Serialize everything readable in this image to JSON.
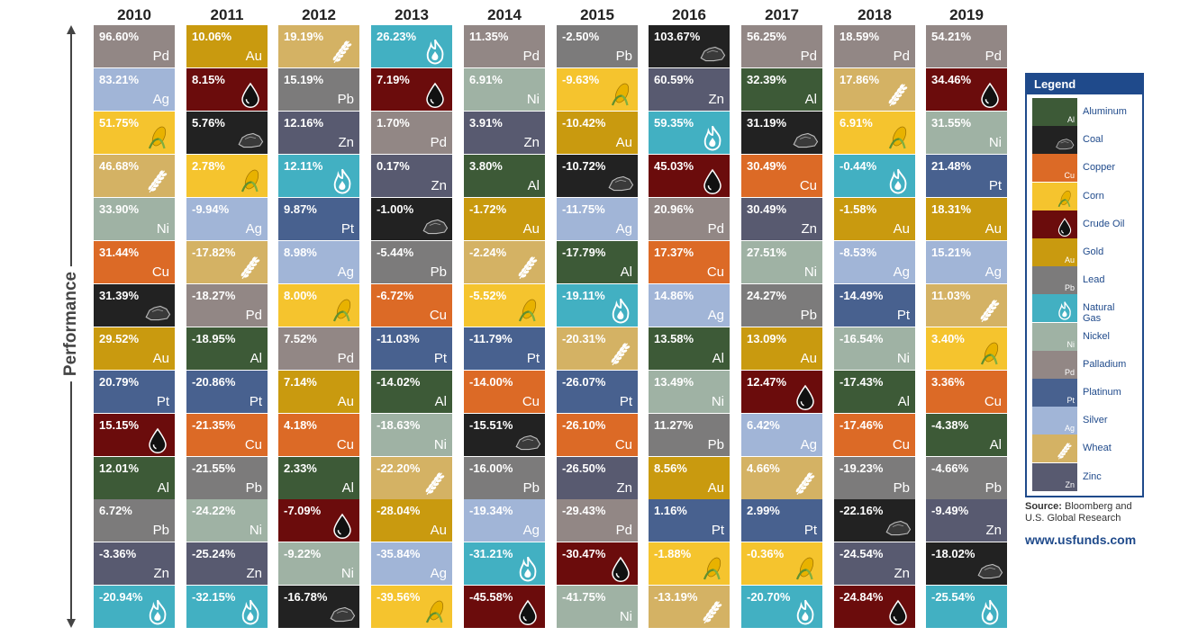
{
  "chart_data": {
    "type": "table",
    "y_axis_label": "Performance",
    "years": [
      "2010",
      "2011",
      "2012",
      "2013",
      "2014",
      "2015",
      "2016",
      "2017",
      "2018",
      "2019"
    ],
    "columns": [
      [
        [
          "96.60%",
          "Pd"
        ],
        [
          "83.21%",
          "Ag"
        ],
        [
          "51.75%",
          "corn"
        ],
        [
          "46.68%",
          "wheat"
        ],
        [
          "33.90%",
          "Ni"
        ],
        [
          "31.44%",
          "Cu"
        ],
        [
          "31.39%",
          "coal"
        ],
        [
          "29.52%",
          "Au"
        ],
        [
          "20.79%",
          "Pt"
        ],
        [
          "15.15%",
          "oil"
        ],
        [
          "12.01%",
          "Al"
        ],
        [
          "6.72%",
          "Pb"
        ],
        [
          "-3.36%",
          "Zn"
        ],
        [
          "-20.94%",
          "gas"
        ]
      ],
      [
        [
          "10.06%",
          "Au"
        ],
        [
          "8.15%",
          "oil"
        ],
        [
          "5.76%",
          "coal"
        ],
        [
          "2.78%",
          "corn"
        ],
        [
          "-9.94%",
          "Ag"
        ],
        [
          "-17.82%",
          "wheat"
        ],
        [
          "-18.27%",
          "Pd"
        ],
        [
          "-18.95%",
          "Al"
        ],
        [
          "-20.86%",
          "Pt"
        ],
        [
          "-21.35%",
          "Cu"
        ],
        [
          "-21.55%",
          "Pb"
        ],
        [
          "-24.22%",
          "Ni"
        ],
        [
          "-25.24%",
          "Zn"
        ],
        [
          "-32.15%",
          "gas"
        ]
      ],
      [
        [
          "19.19%",
          "wheat"
        ],
        [
          "15.19%",
          "Pb"
        ],
        [
          "12.16%",
          "Zn"
        ],
        [
          "12.11%",
          "gas"
        ],
        [
          "9.87%",
          "Pt"
        ],
        [
          "8.98%",
          "Ag"
        ],
        [
          "8.00%",
          "corn"
        ],
        [
          "7.52%",
          "Pd"
        ],
        [
          "7.14%",
          "Au"
        ],
        [
          "4.18%",
          "Cu"
        ],
        [
          "2.33%",
          "Al"
        ],
        [
          "-7.09%",
          "oil"
        ],
        [
          "-9.22%",
          "Ni"
        ],
        [
          "-16.78%",
          "coal"
        ]
      ],
      [
        [
          "26.23%",
          "gas"
        ],
        [
          "7.19%",
          "oil"
        ],
        [
          "1.70%",
          "Pd"
        ],
        [
          "0.17%",
          "Zn"
        ],
        [
          "-1.00%",
          "coal"
        ],
        [
          "-5.44%",
          "Pb"
        ],
        [
          "-6.72%",
          "Cu"
        ],
        [
          "-11.03%",
          "Pt"
        ],
        [
          "-14.02%",
          "Al"
        ],
        [
          "-18.63%",
          "Ni"
        ],
        [
          "-22.20%",
          "wheat"
        ],
        [
          "-28.04%",
          "Au"
        ],
        [
          "-35.84%",
          "Ag"
        ],
        [
          "-39.56%",
          "corn"
        ]
      ],
      [
        [
          "11.35%",
          "Pd"
        ],
        [
          "6.91%",
          "Ni"
        ],
        [
          "3.91%",
          "Zn"
        ],
        [
          "3.80%",
          "Al"
        ],
        [
          "-1.72%",
          "Au"
        ],
        [
          "-2.24%",
          "wheat"
        ],
        [
          "-5.52%",
          "corn"
        ],
        [
          "-11.79%",
          "Pt"
        ],
        [
          "-14.00%",
          "Cu"
        ],
        [
          "-15.51%",
          "coal"
        ],
        [
          "-16.00%",
          "Pb"
        ],
        [
          "-19.34%",
          "Ag"
        ],
        [
          "-31.21%",
          "gas"
        ],
        [
          "-45.58%",
          "oil"
        ]
      ],
      [
        [
          "-2.50%",
          "Pb"
        ],
        [
          "-9.63%",
          "corn"
        ],
        [
          "-10.42%",
          "Au"
        ],
        [
          "-10.72%",
          "coal"
        ],
        [
          "-11.75%",
          "Ag"
        ],
        [
          "-17.79%",
          "Al"
        ],
        [
          "-19.11%",
          "gas"
        ],
        [
          "-20.31%",
          "wheat"
        ],
        [
          "-26.07%",
          "Pt"
        ],
        [
          "-26.10%",
          "Cu"
        ],
        [
          "-26.50%",
          "Zn"
        ],
        [
          "-29.43%",
          "Pd"
        ],
        [
          "-30.47%",
          "oil"
        ],
        [
          "-41.75%",
          "Ni"
        ]
      ],
      [
        [
          "103.67%",
          "coal"
        ],
        [
          "60.59%",
          "Zn"
        ],
        [
          "59.35%",
          "gas"
        ],
        [
          "45.03%",
          "oil"
        ],
        [
          "20.96%",
          "Pd"
        ],
        [
          "17.37%",
          "Cu"
        ],
        [
          "14.86%",
          "Ag"
        ],
        [
          "13.58%",
          "Al"
        ],
        [
          "13.49%",
          "Ni"
        ],
        [
          "11.27%",
          "Pb"
        ],
        [
          "8.56%",
          "Au"
        ],
        [
          "1.16%",
          "Pt"
        ],
        [
          "-1.88%",
          "corn"
        ],
        [
          "-13.19%",
          "wheat"
        ]
      ],
      [
        [
          "56.25%",
          "Pd"
        ],
        [
          "32.39%",
          "Al"
        ],
        [
          "31.19%",
          "coal"
        ],
        [
          "30.49%",
          "Cu"
        ],
        [
          "30.49%",
          "Zn"
        ],
        [
          "27.51%",
          "Ni"
        ],
        [
          "24.27%",
          "Pb"
        ],
        [
          "13.09%",
          "Au"
        ],
        [
          "12.47%",
          "oil"
        ],
        [
          "6.42%",
          "Ag"
        ],
        [
          "4.66%",
          "wheat"
        ],
        [
          "2.99%",
          "Pt"
        ],
        [
          "-0.36%",
          "corn"
        ],
        [
          "-20.70%",
          "gas"
        ]
      ],
      [
        [
          "18.59%",
          "Pd"
        ],
        [
          "17.86%",
          "wheat"
        ],
        [
          "6.91%",
          "corn"
        ],
        [
          "-0.44%",
          "gas"
        ],
        [
          "-1.58%",
          "Au"
        ],
        [
          "-8.53%",
          "Ag"
        ],
        [
          "-14.49%",
          "Pt"
        ],
        [
          "-16.54%",
          "Ni"
        ],
        [
          "-17.43%",
          "Al"
        ],
        [
          "-17.46%",
          "Cu"
        ],
        [
          "-19.23%",
          "Pb"
        ],
        [
          "-22.16%",
          "coal"
        ],
        [
          "-24.54%",
          "Zn"
        ],
        [
          "-24.84%",
          "oil"
        ]
      ],
      [
        [
          "54.21%",
          "Pd"
        ],
        [
          "34.46%",
          "oil"
        ],
        [
          "31.55%",
          "Ni"
        ],
        [
          "21.48%",
          "Pt"
        ],
        [
          "18.31%",
          "Au"
        ],
        [
          "15.21%",
          "Ag"
        ],
        [
          "11.03%",
          "wheat"
        ],
        [
          "3.40%",
          "corn"
        ],
        [
          "3.36%",
          "Cu"
        ],
        [
          "-4.38%",
          "Al"
        ],
        [
          "-4.66%",
          "Pb"
        ],
        [
          "-9.49%",
          "Zn"
        ],
        [
          "-18.02%",
          "coal"
        ],
        [
          "-25.54%",
          "gas"
        ]
      ]
    ],
    "commodities": {
      "Al": {
        "name": "Aluminum",
        "symbol": "Al",
        "color": "#3d5a37",
        "icon": "text"
      },
      "coal": {
        "name": "Coal",
        "symbol": "",
        "color": "#222222",
        "icon": "coal-icon"
      },
      "Cu": {
        "name": "Copper",
        "symbol": "Cu",
        "color": "#dc6a26",
        "icon": "text"
      },
      "corn": {
        "name": "Corn",
        "symbol": "",
        "color": "#f5c42e",
        "icon": "corn-icon"
      },
      "oil": {
        "name": "Crude Oil",
        "symbol": "",
        "color": "#6b0c0c",
        "icon": "oil-drop-icon"
      },
      "Au": {
        "name": "Gold",
        "symbol": "Au",
        "color": "#c99a0f",
        "icon": "text"
      },
      "Pb": {
        "name": "Lead",
        "symbol": "Pb",
        "color": "#7c7b7b",
        "icon": "text"
      },
      "gas": {
        "name": "Natural Gas",
        "symbol": "",
        "color": "#42b0c2",
        "icon": "flame-icon"
      },
      "Ni": {
        "name": "Nickel",
        "symbol": "Ni",
        "color": "#9fb2a4",
        "icon": "text"
      },
      "Pd": {
        "name": "Palladium",
        "symbol": "Pd",
        "color": "#928785",
        "icon": "text"
      },
      "Pt": {
        "name": "Platinum",
        "symbol": "Pt",
        "color": "#48618f",
        "icon": "text"
      },
      "Ag": {
        "name": "Silver",
        "symbol": "Ag",
        "color": "#a1b5d7",
        "icon": "text"
      },
      "wheat": {
        "name": "Wheat",
        "symbol": "",
        "color": "#d4b264",
        "icon": "wheat-icon"
      },
      "Zn": {
        "name": "Zinc",
        "symbol": "Zn",
        "color": "#585a70",
        "icon": "text"
      }
    },
    "legend_order": [
      "Al",
      "coal",
      "Cu",
      "corn",
      "oil",
      "Au",
      "Pb",
      "gas",
      "Ni",
      "Pd",
      "Pt",
      "Ag",
      "wheat",
      "Zn"
    ],
    "legend_placement": "right"
  },
  "legend_title": "Legend",
  "source_label": "Source:",
  "source_text": " Bloomberg and U.S. Global Research",
  "website": "www.usfunds.com"
}
